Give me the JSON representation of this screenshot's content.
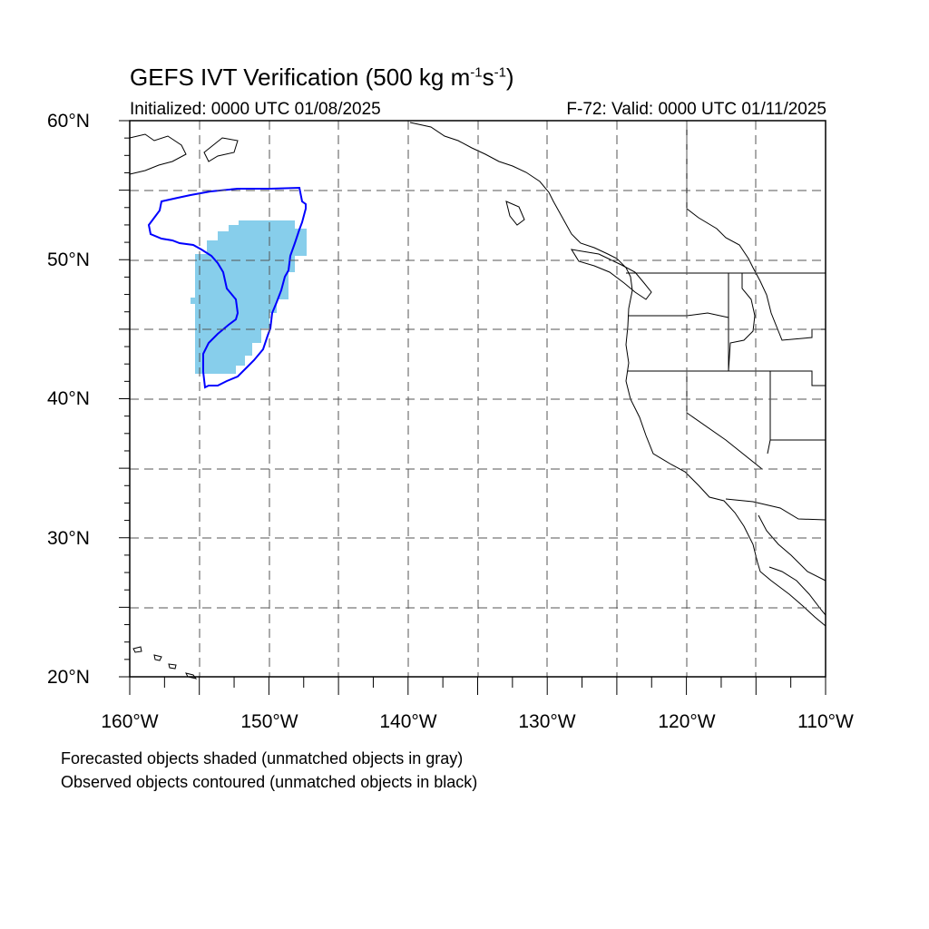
{
  "header": {
    "title_main": "GEFS IVT Verification (500 kg m",
    "title_exp1": "-1",
    "title_mid": "s",
    "title_exp2": "-1",
    "title_end": ")",
    "initialized": "Initialized: 0000 UTC 01/08/2025",
    "valid": "F-72: Valid: 0000 UTC 01/11/2025"
  },
  "axes": {
    "lat_labels": [
      "60°N",
      "50°N",
      "40°N",
      "30°N",
      "20°N"
    ],
    "lon_labels": [
      "160°W",
      "150°W",
      "140°W",
      "130°W",
      "120°W",
      "110°W"
    ],
    "lat_range": [
      20,
      60
    ],
    "lon_range": [
      -160,
      -110
    ],
    "grid": "dashed every 5°"
  },
  "notes": {
    "line1": "Forecasted objects shaded (unmatched objects in gray)",
    "line2": "Observed objects contoured (unmatched objects in black)"
  },
  "colors": {
    "forecast_fill": "#87ceeb",
    "observed_contour": "#0000ff",
    "coastline": "#000000",
    "grid": "#555555"
  },
  "objects": {
    "forecast_region": {
      "type": "shaded",
      "lat_range": [
        41.8,
        52.9
      ],
      "lon_range": [
        -155.4,
        -147.4
      ]
    },
    "observed_region": {
      "type": "contour",
      "lat_range": [
        40.8,
        55.3
      ],
      "lon_range": [
        -158.6,
        -147.3
      ]
    }
  }
}
